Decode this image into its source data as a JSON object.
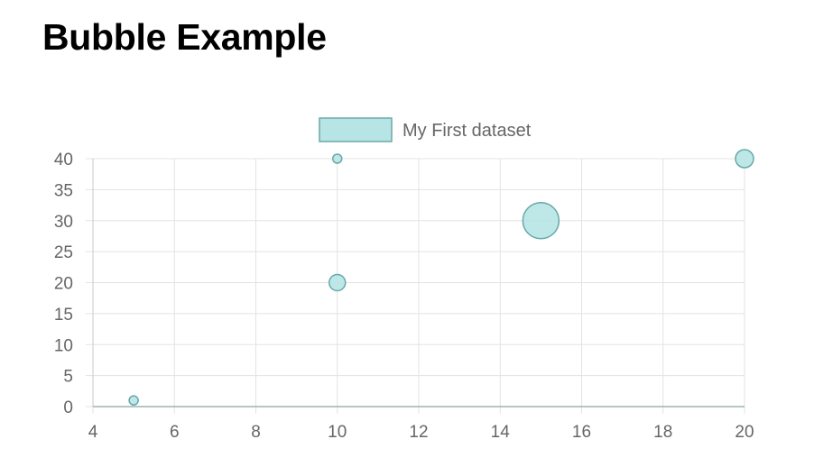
{
  "page": {
    "title": "Bubble Example"
  },
  "chart_data": {
    "type": "scatter",
    "subtype": "bubble",
    "title": "",
    "xlabel": "",
    "ylabel": "",
    "xlim": [
      4,
      20
    ],
    "ylim": [
      0,
      40
    ],
    "x_ticks": [
      4,
      6,
      8,
      10,
      12,
      14,
      16,
      18,
      20
    ],
    "y_ticks": [
      0,
      5,
      10,
      15,
      20,
      25,
      30,
      35,
      40
    ],
    "grid": true,
    "legend_position": "top",
    "series": [
      {
        "name": "My First dataset",
        "fill_color": "#b7e4e4",
        "border_color": "#6aa8a8",
        "points": [
          {
            "x": 5,
            "y": 1,
            "r": 5
          },
          {
            "x": 10,
            "y": 40,
            "r": 5
          },
          {
            "x": 10,
            "y": 20,
            "r": 9
          },
          {
            "x": 15,
            "y": 30,
            "r": 20
          },
          {
            "x": 20,
            "y": 40,
            "r": 10
          }
        ]
      }
    ]
  }
}
